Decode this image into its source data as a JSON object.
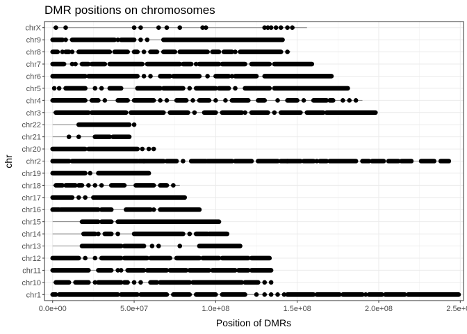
{
  "chart_data": {
    "type": "scatter",
    "title": "DMR positions on chromosomes",
    "xlabel": "Position of DMRs",
    "ylabel": "chr",
    "xlim": [
      -5000000,
      252000000
    ],
    "x_ticks": [
      0,
      50000000,
      100000000,
      150000000,
      200000000,
      250000000
    ],
    "x_tick_labels": [
      "0.0e+00",
      "5.0e+07",
      "1.0e+08",
      "1.5e+08",
      "2.0e+08",
      "2.5e+08"
    ],
    "grid": true,
    "legend": "none",
    "point_color": "#000000",
    "line_color": "#7f7f7f",
    "categories": [
      "chrX",
      "chr9",
      "chr8",
      "chr7",
      "chr6",
      "chr5",
      "chr4",
      "chr3",
      "chr22",
      "chr21",
      "chr20",
      "chr2",
      "chr19",
      "chr18",
      "chr17",
      "chr16",
      "chr15",
      "chr14",
      "chr13",
      "chr12",
      "chr11",
      "chr10",
      "chr1"
    ],
    "series": [
      {
        "chr": "chrX",
        "line": [
          0,
          156000000
        ],
        "segments": [],
        "points": [
          2000000,
          8000000,
          50000000,
          54000000,
          65000000,
          70000000,
          78000000,
          92000000,
          94000000,
          130000000,
          132000000,
          134000000,
          137000000,
          140000000,
          144000000,
          147000000
        ]
      },
      {
        "chr": "chr9",
        "line": [
          0,
          141000000
        ],
        "segments": [
          [
            0,
            6000000
          ],
          [
            12000000,
            38000000
          ],
          [
            42000000,
            50000000
          ],
          [
            68000000,
            141000000
          ]
        ],
        "points": [
          8000000,
          40000000,
          54000000,
          58000000
        ]
      },
      {
        "chr": "chr8",
        "line": [
          0,
          146000000
        ],
        "segments": [
          [
            0,
            3000000
          ],
          [
            8000000,
            10000000
          ],
          [
            16000000,
            35000000
          ],
          [
            38000000,
            46000000
          ],
          [
            50000000,
            52000000
          ],
          [
            60000000,
            64000000
          ],
          [
            68000000,
            75000000
          ],
          [
            78000000,
            95000000
          ],
          [
            98000000,
            102000000
          ],
          [
            105000000,
            110000000
          ],
          [
            115000000,
            140000000
          ]
        ],
        "points": [
          6000000,
          12000000,
          56000000,
          112000000,
          144000000
        ]
      },
      {
        "chr": "chr7",
        "line": [
          0,
          159000000
        ],
        "segments": [
          [
            0,
            7000000
          ],
          [
            18000000,
            22000000
          ],
          [
            24000000,
            32000000
          ],
          [
            35000000,
            55000000
          ],
          [
            58000000,
            78000000
          ],
          [
            80000000,
            85000000
          ],
          [
            90000000,
            102000000
          ],
          [
            104000000,
            118000000
          ],
          [
            122000000,
            133000000
          ],
          [
            136000000,
            159000000
          ]
        ],
        "points": [
          12000000,
          14000000,
          88000000
        ]
      },
      {
        "chr": "chr6",
        "line": [
          0,
          171000000
        ],
        "segments": [
          [
            0,
            20000000
          ],
          [
            22000000,
            52000000
          ],
          [
            66000000,
            72000000
          ],
          [
            74000000,
            90000000
          ],
          [
            100000000,
            108000000
          ],
          [
            112000000,
            125000000
          ],
          [
            130000000,
            171000000
          ]
        ],
        "points": [
          56000000,
          60000000,
          95000000,
          110000000
        ]
      },
      {
        "chr": "chr5",
        "line": [
          0,
          181000000
        ],
        "segments": [
          [
            8000000,
            20000000
          ],
          [
            35000000,
            42000000
          ],
          [
            52000000,
            66000000
          ],
          [
            68000000,
            80000000
          ],
          [
            88000000,
            100000000
          ],
          [
            102000000,
            108000000
          ],
          [
            118000000,
            133000000
          ],
          [
            136000000,
            181000000
          ]
        ],
        "points": [
          1000000,
          4000000,
          26000000,
          30000000,
          84000000,
          112000000
        ]
      },
      {
        "chr": "chr4",
        "line": [
          0,
          190000000
        ],
        "segments": [
          [
            0,
            20000000
          ],
          [
            24000000,
            28000000
          ],
          [
            40000000,
            46000000
          ],
          [
            50000000,
            62000000
          ],
          [
            76000000,
            82000000
          ],
          [
            90000000,
            96000000
          ],
          [
            110000000,
            120000000
          ],
          [
            126000000,
            130000000
          ],
          [
            144000000,
            150000000
          ],
          [
            160000000,
            168000000
          ],
          [
            170000000,
            172000000
          ]
        ],
        "points": [
          32000000,
          66000000,
          70000000,
          86000000,
          100000000,
          106000000,
          138000000,
          154000000,
          178000000,
          182000000,
          186000000
        ]
      },
      {
        "chr": "chr3",
        "line": [
          0,
          198000000
        ],
        "segments": [
          [
            2000000,
            22000000
          ],
          [
            24000000,
            45000000
          ],
          [
            48000000,
            68000000
          ],
          [
            72000000,
            83000000
          ],
          [
            93000000,
            100000000
          ],
          [
            104000000,
            116000000
          ],
          [
            122000000,
            132000000
          ],
          [
            140000000,
            152000000
          ],
          [
            156000000,
            166000000
          ],
          [
            168000000,
            198000000
          ]
        ],
        "points": [
          87000000,
          118000000,
          136000000
        ]
      },
      {
        "chr": "chr22",
        "line": [
          0,
          51000000
        ],
        "segments": [
          [
            16000000,
            47000000
          ]
        ],
        "points": [
          50000000
        ]
      },
      {
        "chr": "chr21",
        "line": [
          0,
          48000000
        ],
        "segments": [
          [
            26000000,
            35000000
          ],
          [
            37000000,
            47000000
          ]
        ],
        "points": [
          10000000,
          16000000
        ]
      },
      {
        "chr": "chr20",
        "line": [
          0,
          63000000
        ],
        "segments": [
          [
            0,
            20000000
          ],
          [
            22000000,
            52000000
          ]
        ],
        "points": [
          55000000,
          59000000,
          62000000
        ]
      },
      {
        "chr": "chr2",
        "line": [
          0,
          243000000
        ],
        "segments": [
          [
            0,
            10000000
          ],
          [
            12000000,
            52000000
          ],
          [
            53000000,
            68000000
          ],
          [
            70000000,
            76000000
          ],
          [
            85000000,
            94000000
          ],
          [
            95000000,
            110000000
          ],
          [
            112000000,
            122000000
          ],
          [
            126000000,
            138000000
          ],
          [
            140000000,
            152000000
          ],
          [
            154000000,
            160000000
          ],
          [
            164000000,
            168000000
          ],
          [
            170000000,
            186000000
          ],
          [
            190000000,
            194000000
          ],
          [
            196000000,
            203000000
          ],
          [
            206000000,
            212000000
          ],
          [
            214000000,
            220000000
          ],
          [
            226000000,
            234000000
          ],
          [
            238000000,
            243000000
          ]
        ],
        "points": [
          56000000,
          80000000,
          144000000,
          162000000
        ]
      },
      {
        "chr": "chr19",
        "line": [
          0,
          59000000
        ],
        "segments": [
          [
            0,
            20000000
          ],
          [
            28000000,
            59000000
          ]
        ],
        "points": [
          23000000
        ]
      },
      {
        "chr": "chr18",
        "line": [
          0,
          78000000
        ],
        "segments": [
          [
            2000000,
            6000000
          ],
          [
            8000000,
            14000000
          ],
          [
            16000000,
            18000000
          ],
          [
            36000000,
            44000000
          ],
          [
            51000000,
            62000000
          ],
          [
            66000000,
            70000000
          ]
        ],
        "points": [
          22000000,
          26000000,
          30000000,
          74000000
        ]
      },
      {
        "chr": "chr17",
        "line": [
          0,
          81000000
        ],
        "segments": [
          [
            0,
            12000000
          ],
          [
            25000000,
            81000000
          ]
        ],
        "points": [
          16000000,
          20000000
        ]
      },
      {
        "chr": "chr16",
        "line": [
          0,
          90000000
        ],
        "segments": [
          [
            0,
            4000000
          ],
          [
            5000000,
            28000000
          ],
          [
            30000000,
            36000000
          ],
          [
            45000000,
            60000000
          ],
          [
            66000000,
            90000000
          ]
        ],
        "points": [
          62000000
        ]
      },
      {
        "chr": "chr15",
        "line": [
          0,
          102000000
        ],
        "segments": [
          [
            18000000,
            28000000
          ],
          [
            30000000,
            36000000
          ],
          [
            40000000,
            102000000
          ]
        ],
        "points": []
      },
      {
        "chr": "chr14",
        "line": [
          0,
          107000000
        ],
        "segments": [
          [
            19000000,
            26000000
          ],
          [
            32000000,
            36000000
          ],
          [
            50000000,
            80000000
          ],
          [
            88000000,
            95000000
          ],
          [
            96000000,
            107000000
          ]
        ],
        "points": [
          28000000,
          40000000,
          84000000
        ]
      },
      {
        "chr": "chr13",
        "line": [
          0,
          115000000
        ],
        "segments": [
          [
            18000000,
            42000000
          ],
          [
            44000000,
            56000000
          ],
          [
            90000000,
            115000000
          ]
        ],
        "points": [
          61000000,
          65000000,
          78000000
        ]
      },
      {
        "chr": "chr12",
        "line": [
          0,
          133000000
        ],
        "segments": [
          [
            0,
            16000000
          ],
          [
            30000000,
            42000000
          ],
          [
            44000000,
            58000000
          ],
          [
            60000000,
            72000000
          ],
          [
            76000000,
            90000000
          ],
          [
            92000000,
            102000000
          ],
          [
            104000000,
            120000000
          ],
          [
            122000000,
            133000000
          ]
        ],
        "points": [
          20000000,
          26000000
        ]
      },
      {
        "chr": "chr11",
        "line": [
          0,
          134000000
        ],
        "segments": [
          [
            0,
            22000000
          ],
          [
            28000000,
            36000000
          ],
          [
            46000000,
            56000000
          ],
          [
            58000000,
            70000000
          ],
          [
            72000000,
            82000000
          ],
          [
            84000000,
            96000000
          ],
          [
            98000000,
            112000000
          ],
          [
            114000000,
            120000000
          ],
          [
            122000000,
            134000000
          ]
        ],
        "points": [
          40000000,
          42000000
        ]
      },
      {
        "chr": "chr10",
        "line": [
          0,
          135000000
        ],
        "segments": [
          [
            2000000,
            10000000
          ],
          [
            14000000,
            22000000
          ],
          [
            28000000,
            42000000
          ],
          [
            44000000,
            46000000
          ],
          [
            60000000,
            64000000
          ],
          [
            66000000,
            84000000
          ],
          [
            86000000,
            116000000
          ],
          [
            118000000,
            126000000
          ]
        ],
        "points": [
          26000000,
          50000000,
          54000000,
          72000000,
          130000000,
          134000000
        ]
      },
      {
        "chr": "chr1",
        "line": [
          0,
          249000000
        ],
        "segments": [
          [
            0,
            2000000
          ],
          [
            4000000,
            40000000
          ],
          [
            42000000,
            52000000
          ],
          [
            54000000,
            70000000
          ],
          [
            74000000,
            84000000
          ],
          [
            88000000,
            100000000
          ],
          [
            104000000,
            118000000
          ],
          [
            144000000,
            160000000
          ],
          [
            162000000,
            176000000
          ],
          [
            178000000,
            190000000
          ],
          [
            194000000,
            202000000
          ],
          [
            204000000,
            216000000
          ],
          [
            218000000,
            249000000
          ]
        ],
        "points": [
          125000000,
          130000000,
          134000000,
          138000000,
          142000000,
          192000000
        ]
      }
    ]
  }
}
